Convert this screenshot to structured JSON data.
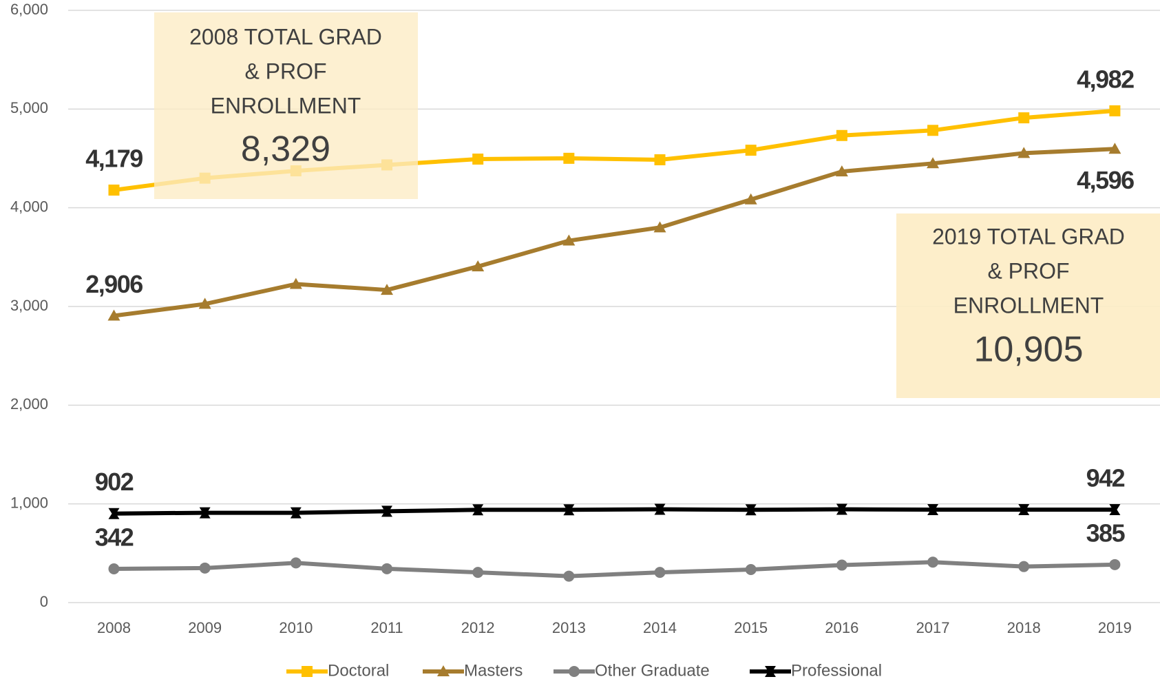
{
  "chart_data": {
    "type": "line",
    "x": [
      2008,
      2009,
      2010,
      2011,
      2012,
      2013,
      2014,
      2015,
      2016,
      2017,
      2018,
      2019
    ],
    "xticks": [
      2008,
      2009,
      2010,
      2011,
      2012,
      2013,
      2014,
      2015,
      2016,
      2017,
      2018,
      2019
    ],
    "ylim": [
      0,
      6000
    ],
    "yticks": [
      {
        "value": 0,
        "label": "0"
      },
      {
        "value": 1000,
        "label": "1,000"
      },
      {
        "value": 2000,
        "label": "2,000"
      },
      {
        "value": 3000,
        "label": "3,000"
      },
      {
        "value": 4000,
        "label": "4,000"
      },
      {
        "value": 5000,
        "label": "5,000"
      },
      {
        "value": 6000,
        "label": "6,000"
      }
    ],
    "grid": true,
    "legend": "bottom",
    "series": [
      {
        "name": "Doctoral",
        "color": "#ffc000",
        "marker": "square",
        "values": [
          4179,
          4300,
          4374,
          4434,
          4493,
          4501,
          4486,
          4583,
          4732,
          4784,
          4911,
          4982
        ],
        "value_labels": [
          "4,179",
          null,
          null,
          null,
          null,
          null,
          null,
          null,
          null,
          null,
          null,
          "4,982"
        ]
      },
      {
        "name": "Masters",
        "color": "#a67c2e",
        "marker": "triangle",
        "values": [
          2906,
          3025,
          3227,
          3167,
          3405,
          3666,
          3800,
          4083,
          4367,
          4449,
          4553,
          4596
        ],
        "value_labels": [
          "2,906",
          null,
          null,
          null,
          null,
          null,
          null,
          null,
          null,
          null,
          null,
          "4,596"
        ]
      },
      {
        "name": "Other Graduate",
        "color": "#808080",
        "marker": "circle",
        "values": [
          342,
          350,
          402,
          343,
          306,
          268,
          306,
          335,
          380,
          410,
          365,
          385
        ],
        "value_labels": [
          "342",
          null,
          null,
          null,
          null,
          null,
          null,
          null,
          null,
          null,
          null,
          "385"
        ]
      },
      {
        "name": "Professional",
        "color": "#000000",
        "marker": "bowtie",
        "values": [
          902,
          910,
          910,
          925,
          940,
          940,
          945,
          940,
          945,
          942,
          942,
          942
        ],
        "value_labels": [
          "902",
          null,
          null,
          null,
          null,
          null,
          null,
          null,
          null,
          null,
          null,
          "942"
        ]
      }
    ],
    "annotations": [
      {
        "lines": [
          "2008 TOTAL GRAD",
          "& PROF",
          "ENROLLMENT"
        ],
        "total": "8,329"
      },
      {
        "lines": [
          "2019 TOTAL GRAD",
          "& PROF",
          "ENROLLMENT"
        ],
        "total": "10,905"
      }
    ]
  }
}
